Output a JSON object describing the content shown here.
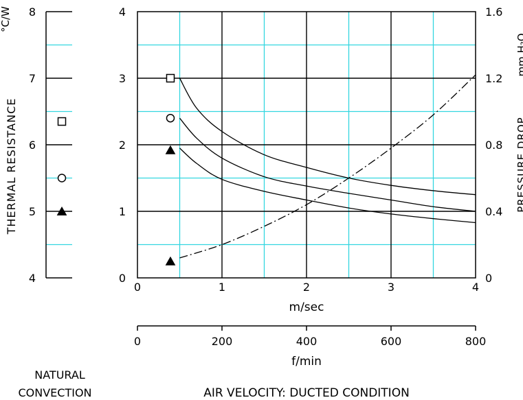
{
  "colors": {
    "axis": "#000000",
    "grid_major": "#000000",
    "grid_minor": "#33d6e0",
    "background": "#ffffff"
  },
  "chart_data": [
    {
      "type": "scatter",
      "panel": "natural-convection",
      "ylabel": "THERMAL RESISTANCE",
      "yunit": "°C/W",
      "ylim": [
        4,
        8
      ],
      "yticks": [
        "4",
        "5",
        "6",
        "7",
        "8"
      ],
      "grid": true,
      "caption_lines": [
        "NATURAL",
        "CONVECTION"
      ],
      "points": [
        {
          "marker": "square",
          "y": 6.35
        },
        {
          "marker": "circle",
          "y": 5.5
        },
        {
          "marker": "triangle",
          "y": 5.0
        }
      ]
    },
    {
      "type": "line",
      "panel": "ducted",
      "xlabel": "m/sec",
      "xlim": [
        0,
        4
      ],
      "xticks": [
        "0",
        "1",
        "2",
        "3",
        "4"
      ],
      "ylim_left": [
        0,
        4
      ],
      "yticks_left": [
        "0",
        "1",
        "2",
        "3",
        "4"
      ],
      "ylabel_right": "PRESSURE DROP",
      "yunit_right": "mm H₂O",
      "ylim_right": [
        0,
        1.6
      ],
      "yticks_right": [
        "0",
        "0.4",
        "0.8",
        "1.2",
        "1.6"
      ],
      "secondary_xlabel": "f/min",
      "secondary_xlim": [
        0,
        800
      ],
      "secondary_xticks": [
        "0",
        "200",
        "400",
        "600",
        "800"
      ],
      "caption": "AIR VELOCITY:  DUCTED CONDITION",
      "grid": true,
      "series": [
        {
          "marker": "square",
          "style": "solid",
          "axis": "left",
          "marker_point": [
            0.39,
            3.0
          ],
          "x": [
            0.5,
            0.7,
            1.0,
            1.5,
            2.0,
            2.5,
            3.0,
            3.5,
            4.0
          ],
          "y": [
            3.0,
            2.55,
            2.2,
            1.85,
            1.66,
            1.5,
            1.39,
            1.31,
            1.25
          ]
        },
        {
          "marker": "circle",
          "style": "solid",
          "axis": "left",
          "marker_point": [
            0.39,
            2.4
          ],
          "x": [
            0.5,
            0.7,
            1.0,
            1.5,
            2.0,
            2.5,
            3.0,
            3.5,
            4.0
          ],
          "y": [
            2.4,
            2.1,
            1.8,
            1.52,
            1.38,
            1.27,
            1.17,
            1.07,
            1.0
          ]
        },
        {
          "marker": "triangle",
          "style": "solid",
          "axis": "left",
          "marker_point": [
            0.39,
            1.92
          ],
          "x": [
            0.5,
            0.7,
            1.0,
            1.5,
            2.0,
            2.5,
            3.0,
            3.5,
            4.0
          ],
          "y": [
            1.95,
            1.72,
            1.48,
            1.3,
            1.17,
            1.05,
            0.96,
            0.89,
            0.83
          ]
        },
        {
          "marker": "triangle",
          "style": "dash-dot",
          "axis": "right",
          "marker_point": [
            0.39,
            0.1
          ],
          "x": [
            0.5,
            1.0,
            1.5,
            2.0,
            2.5,
            3.0,
            3.5,
            4.0
          ],
          "y": [
            0.12,
            0.2,
            0.31,
            0.44,
            0.6,
            0.78,
            0.98,
            1.22
          ]
        }
      ]
    }
  ]
}
